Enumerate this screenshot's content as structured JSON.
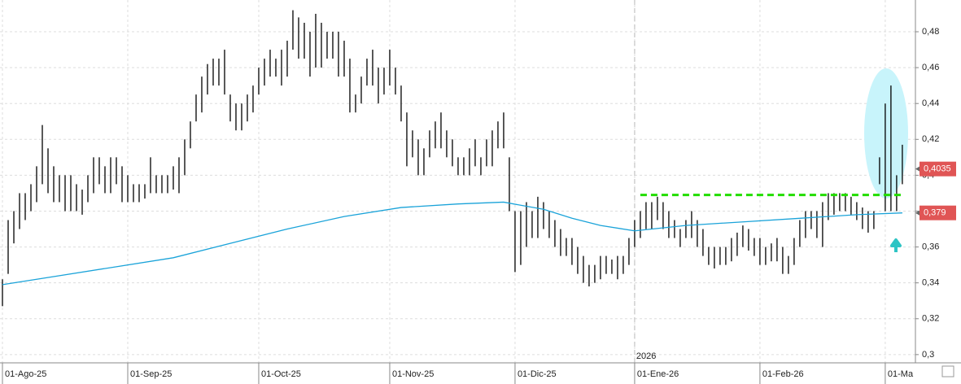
{
  "chart_data": {
    "type": "ohlc",
    "color": "#000000",
    "high": [
      0.342,
      0.375,
      0.38,
      0.39,
      0.39,
      0.395,
      0.405,
      0.428,
      0.415,
      0.405,
      0.4,
      0.4,
      0.4,
      0.395,
      0.392,
      0.4,
      0.41,
      0.41,
      0.405,
      0.41,
      0.41,
      0.405,
      0.4,
      0.395,
      0.395,
      0.395,
      0.41,
      0.4,
      0.4,
      0.4,
      0.405,
      0.41,
      0.42,
      0.43,
      0.445,
      0.455,
      0.462,
      0.465,
      0.465,
      0.47,
      0.445,
      0.44,
      0.44,
      0.445,
      0.45,
      0.46,
      0.465,
      0.47,
      0.465,
      0.47,
      0.475,
      0.492,
      0.488,
      0.485,
      0.48,
      0.49,
      0.485,
      0.48,
      0.48,
      0.48,
      0.475,
      0.465,
      0.445,
      0.455,
      0.465,
      0.47,
      0.46,
      0.46,
      0.47,
      0.46,
      0.45,
      0.435,
      0.425,
      0.42,
      0.415,
      0.425,
      0.43,
      0.435,
      0.425,
      0.42,
      0.41,
      0.41,
      0.415,
      0.42,
      0.41,
      0.42,
      0.425,
      0.43,
      0.435,
      0.41,
      0.38,
      0.38,
      0.385,
      0.38,
      0.388,
      0.385,
      0.38,
      0.375,
      0.37,
      0.365,
      0.365,
      0.36,
      0.355,
      0.35,
      0.35,
      0.355,
      0.355,
      0.353,
      0.355,
      0.355,
      0.365,
      0.375,
      0.38,
      0.385,
      0.385,
      0.388,
      0.385,
      0.38,
      0.375,
      0.37,
      0.375,
      0.38,
      0.375,
      0.37,
      0.36,
      0.36,
      0.36,
      0.36,
      0.365,
      0.368,
      0.372,
      0.37,
      0.365,
      0.365,
      0.36,
      0.362,
      0.365,
      0.36,
      0.355,
      0.365,
      0.375,
      0.38,
      0.38,
      0.38,
      0.385,
      0.39,
      0.39,
      0.39,
      0.39,
      0.388,
      0.385,
      0.382,
      0.38,
      0.38,
      0.41,
      0.44,
      0.45,
      0.4,
      0.417
    ],
    "low": [
      0.327,
      0.345,
      0.362,
      0.37,
      0.375,
      0.38,
      0.385,
      0.395,
      0.39,
      0.385,
      0.385,
      0.38,
      0.38,
      0.38,
      0.378,
      0.385,
      0.39,
      0.395,
      0.39,
      0.39,
      0.395,
      0.385,
      0.385,
      0.385,
      0.385,
      0.387,
      0.39,
      0.39,
      0.39,
      0.39,
      0.392,
      0.39,
      0.4,
      0.415,
      0.43,
      0.435,
      0.445,
      0.45,
      0.45,
      0.445,
      0.43,
      0.425,
      0.425,
      0.43,
      0.435,
      0.445,
      0.45,
      0.455,
      0.455,
      0.45,
      0.455,
      0.47,
      0.465,
      0.465,
      0.455,
      0.46,
      0.46,
      0.465,
      0.465,
      0.455,
      0.455,
      0.435,
      0.435,
      0.44,
      0.45,
      0.45,
      0.44,
      0.445,
      0.45,
      0.445,
      0.43,
      0.405,
      0.41,
      0.4,
      0.4,
      0.41,
      0.415,
      0.415,
      0.41,
      0.405,
      0.4,
      0.4,
      0.4,
      0.405,
      0.4,
      0.405,
      0.405,
      0.415,
      0.415,
      0.38,
      0.346,
      0.35,
      0.36,
      0.365,
      0.365,
      0.37,
      0.365,
      0.36,
      0.355,
      0.355,
      0.35,
      0.345,
      0.34,
      0.338,
      0.34,
      0.342,
      0.345,
      0.345,
      0.342,
      0.345,
      0.35,
      0.36,
      0.365,
      0.37,
      0.37,
      0.375,
      0.37,
      0.365,
      0.365,
      0.36,
      0.365,
      0.365,
      0.36,
      0.355,
      0.35,
      0.348,
      0.35,
      0.35,
      0.352,
      0.355,
      0.36,
      0.358,
      0.355,
      0.35,
      0.35,
      0.352,
      0.352,
      0.345,
      0.345,
      0.35,
      0.36,
      0.365,
      0.37,
      0.365,
      0.36,
      0.375,
      0.378,
      0.38,
      0.38,
      0.378,
      0.375,
      0.37,
      0.368,
      0.37,
      0.395,
      0.38,
      0.38,
      0.38,
      0.395
    ],
    "ma": {
      "color": "#1aa3d9",
      "x": [
        0,
        10,
        20,
        30,
        40,
        50,
        60,
        70,
        80,
        88,
        95,
        100,
        105,
        111,
        120,
        130,
        140,
        150,
        158
      ],
      "values": [
        0.339,
        0.344,
        0.349,
        0.354,
        0.362,
        0.37,
        0.377,
        0.382,
        0.384,
        0.385,
        0.381,
        0.376,
        0.372,
        0.369,
        0.372,
        0.374,
        0.376,
        0.378,
        0.379
      ]
    },
    "level": {
      "color": "#22dd00",
      "value": 0.389,
      "x": [
        112,
        158
      ]
    },
    "price_tags": [
      {
        "value": 0.4035,
        "label": "0,4035"
      },
      {
        "value": 0.379,
        "label": "0,379"
      }
    ],
    "year_marker": {
      "value": 111,
      "label": "2026"
    },
    "xlim": [
      -0.43,
      160.3
    ],
    "xticks": [
      {
        "value": 0,
        "label": "01-Ago-25"
      },
      {
        "value": 22,
        "label": "01-Sep-25"
      },
      {
        "value": 45,
        "label": "01-Oct-25"
      },
      {
        "value": 68,
        "label": "01-Nov-25"
      },
      {
        "value": 90,
        "label": "01-Dic-25"
      },
      {
        "value": 111,
        "label": "01-Ene-26"
      },
      {
        "value": 133,
        "label": "01-Feb-26"
      },
      {
        "value": 155,
        "label": "01-Ma"
      }
    ],
    "ylim": [
      0.2954,
      0.4977
    ],
    "yticks": [
      {
        "value": 0.3,
        "label": "0,3"
      },
      {
        "value": 0.32,
        "label": "0,32"
      },
      {
        "value": 0.34,
        "label": "0,34"
      },
      {
        "value": 0.36,
        "label": "0,36"
      },
      {
        "value": 0.38,
        "label": "0,38"
      },
      {
        "value": 0.4,
        "label": "0,4"
      },
      {
        "value": 0.42,
        "label": "0,42"
      },
      {
        "value": 0.44,
        "label": "0,44"
      },
      {
        "value": 0.46,
        "label": "0,46"
      },
      {
        "value": 0.48,
        "label": "0,48"
      }
    ],
    "grid": true
  }
}
